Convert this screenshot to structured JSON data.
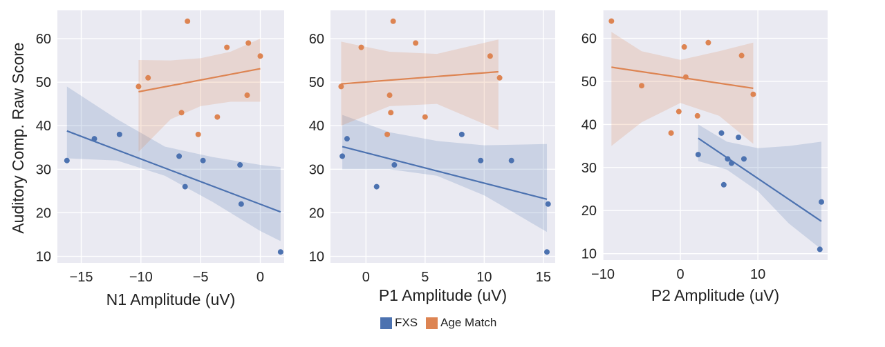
{
  "figure": {
    "ylabel": "Auditory Comp. Raw Score",
    "legend": [
      {
        "label": "FXS",
        "color": "#4c72b0"
      },
      {
        "label": "Age Match",
        "color": "#dd8452"
      }
    ]
  },
  "chart_data": [
    {
      "type": "scatter",
      "xlabel": "N1 Amplitude (uV)",
      "ylabel": "Auditory Comp. Raw Score",
      "xlim": [
        -17,
        2
      ],
      "ylim": [
        8.5,
        66.5
      ],
      "xticks": [
        -15,
        -10,
        -5,
        0
      ],
      "xtick_labels": [
        "−15",
        "−10",
        "−5",
        "0"
      ],
      "yticks": [
        10,
        20,
        30,
        40,
        50,
        60
      ],
      "ytick_labels": [
        "10",
        "20",
        "30",
        "40",
        "50",
        "60"
      ],
      "grid": true,
      "series": [
        {
          "name": "FXS",
          "color": "#4c72b0",
          "x": [
            -16.2,
            -13.9,
            -11.8,
            -6.8,
            -6.3,
            -4.8,
            -1.7,
            -1.6,
            1.7
          ],
          "y": [
            32,
            37,
            38,
            33,
            26,
            32,
            31,
            22,
            11
          ],
          "fit": {
            "x": [
              -16.2,
              1.7
            ],
            "y": [
              38.8,
              20.2
            ]
          },
          "ci": {
            "x": [
              -16.2,
              -12,
              -8,
              -4,
              0,
              1.7
            ],
            "upper": [
              49,
              41.5,
              35.2,
              32.8,
              31,
              30.5
            ],
            "lower": [
              32.5,
              32,
              28.5,
              22.5,
              15.8,
              13.5
            ]
          }
        },
        {
          "name": "Age Match",
          "color": "#dd8452",
          "x": [
            -10.2,
            -9.4,
            -6.6,
            -6.1,
            -5.2,
            -3.6,
            -2.8,
            -1.1,
            -1,
            0
          ],
          "y": [
            49,
            51,
            43,
            64,
            38,
            42,
            58,
            47,
            59,
            56
          ],
          "fit": {
            "x": [
              -10.2,
              0
            ],
            "y": [
              47.8,
              53.1
            ]
          },
          "ci": {
            "x": [
              -10.2,
              -7.5,
              -5,
              -2.5,
              0
            ],
            "upper": [
              55.1,
              55,
              55.5,
              57,
              60
            ],
            "lower": [
              34,
              41.5,
              44.5,
              45.5,
              45.5
            ]
          }
        }
      ]
    },
    {
      "type": "scatter",
      "xlabel": "P1 Amplitude (uV)",
      "ylabel": "",
      "xlim": [
        -3,
        16
      ],
      "ylim": [
        8.5,
        66.5
      ],
      "xticks": [
        0,
        5,
        10,
        15
      ],
      "xtick_labels": [
        "0",
        "5",
        "10",
        "15"
      ],
      "yticks": [
        10,
        20,
        30,
        40,
        50,
        60
      ],
      "ytick_labels": [
        "10",
        "20",
        "30",
        "40",
        "50",
        "60"
      ],
      "grid": true,
      "series": [
        {
          "name": "FXS",
          "color": "#4c72b0",
          "x": [
            -2,
            -1.6,
            0.9,
            2.4,
            8.1,
            9.7,
            12.3,
            15.3,
            15.4
          ],
          "y": [
            33,
            37,
            26,
            31,
            38,
            32,
            32,
            11,
            22
          ],
          "fit": {
            "x": [
              -2,
              15.3
            ],
            "y": [
              35.2,
              23.1
            ]
          },
          "ci": {
            "x": [
              -2,
              2,
              6,
              10,
              15.3
            ],
            "upper": [
              42.5,
              38.5,
              36.5,
              35.5,
              35.8
            ],
            "lower": [
              30,
              30,
              28.5,
              24,
              15.6
            ]
          }
        },
        {
          "name": "Age Match",
          "color": "#dd8452",
          "x": [
            -2.1,
            -0.4,
            1.8,
            2,
            2.1,
            2.3,
            4.2,
            5,
            10.5,
            11.3
          ],
          "y": [
            49,
            58,
            38,
            47,
            43,
            64,
            59,
            42,
            56,
            51
          ],
          "fit": {
            "x": [
              -2.1,
              11.2
            ],
            "y": [
              49.6,
              52.4
            ]
          },
          "ci": {
            "x": [
              -2.1,
              2,
              6,
              11.2
            ],
            "upper": [
              59.3,
              57,
              56.5,
              59.8
            ],
            "lower": [
              40,
              44.5,
              45,
              39
            ]
          }
        }
      ]
    },
    {
      "type": "scatter",
      "xlabel": "P2 Amplitude (uV)",
      "ylabel": "",
      "xlim": [
        -10,
        19
      ],
      "ylim": [
        8.5,
        66.5
      ],
      "xticks": [
        -10,
        0,
        10
      ],
      "xtick_labels": [
        "−10",
        "0",
        "10"
      ],
      "yticks": [
        10,
        20,
        30,
        40,
        50,
        60
      ],
      "ytick_labels": [
        "10",
        "20",
        "30",
        "40",
        "50",
        "60"
      ],
      "grid": true,
      "series": [
        {
          "name": "FXS",
          "color": "#4c72b0",
          "x": [
            2.3,
            5.3,
            5.6,
            6.1,
            6.6,
            7.5,
            8.2,
            18,
            18.2
          ],
          "y": [
            33,
            38,
            26,
            32,
            31,
            37,
            32,
            11,
            22
          ],
          "fit": {
            "x": [
              2.3,
              18.2
            ],
            "y": [
              36.8,
              17.5
            ]
          },
          "ci": {
            "x": [
              2.3,
              6,
              10,
              14,
              18.2
            ],
            "upper": [
              40,
              36,
              34.5,
              35,
              36
            ],
            "lower": [
              31.5,
              29.5,
              24.5,
              17,
              11
            ]
          }
        },
        {
          "name": "Age Match",
          "color": "#dd8452",
          "x": [
            -8.9,
            -5,
            -1.2,
            -0.2,
            0.5,
            0.7,
            2.2,
            3.6,
            7.9,
            9.4
          ],
          "y": [
            64,
            49,
            38,
            43,
            58,
            51,
            42,
            59,
            56,
            47
          ],
          "fit": {
            "x": [
              -8.9,
              9.4
            ],
            "y": [
              53.3,
              48.4
            ]
          },
          "ci": {
            "x": [
              -8.9,
              -5,
              0,
              5,
              9.4
            ],
            "upper": [
              61.5,
              57,
              55,
              57,
              59
            ],
            "lower": [
              35,
              40.5,
              45,
              42,
              35.5
            ]
          }
        }
      ]
    }
  ]
}
